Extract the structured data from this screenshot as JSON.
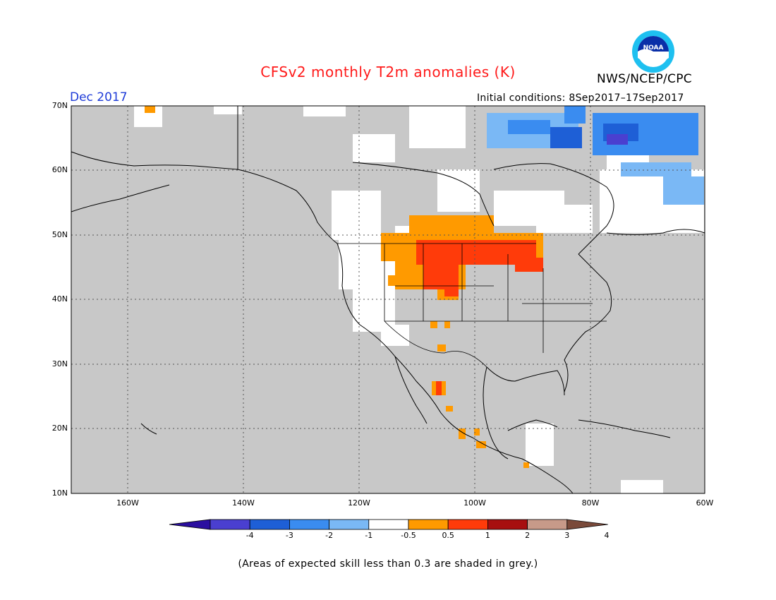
{
  "title": "CFSv2 monthly T2m anomalies (K)",
  "valid_month": "Dec 2017",
  "initial_conditions": "Initial conditions: 8Sep2017–17Sep2017",
  "agency": "NWS/NCEP/CPC",
  "logo_text": "NOAA",
  "footnote": "(Areas of expected skill less than 0.3 are shaded in grey.)",
  "map": {
    "lat_labels": [
      "70N",
      "60N",
      "50N",
      "40N",
      "30N",
      "20N",
      "10N"
    ],
    "lon_labels": [
      "160W",
      "140W",
      "120W",
      "100W",
      "80W",
      "60W"
    ],
    "colors": {
      "low_skill": "#c8c8c8",
      "border": "#000000"
    }
  },
  "legend": {
    "labels": [
      "-4",
      "-3",
      "-2",
      "-1",
      "-0.5",
      "0.5",
      "1",
      "2",
      "3",
      "4"
    ],
    "colors": [
      "#2b0fa0",
      "#4a3fd0",
      "#1e5fd6",
      "#3a8cf0",
      "#7ab8f5",
      "#ffffff",
      "#ff9a00",
      "#ff3b0a",
      "#a70f0f",
      "#c79a89",
      "#7a4a3a"
    ]
  }
}
